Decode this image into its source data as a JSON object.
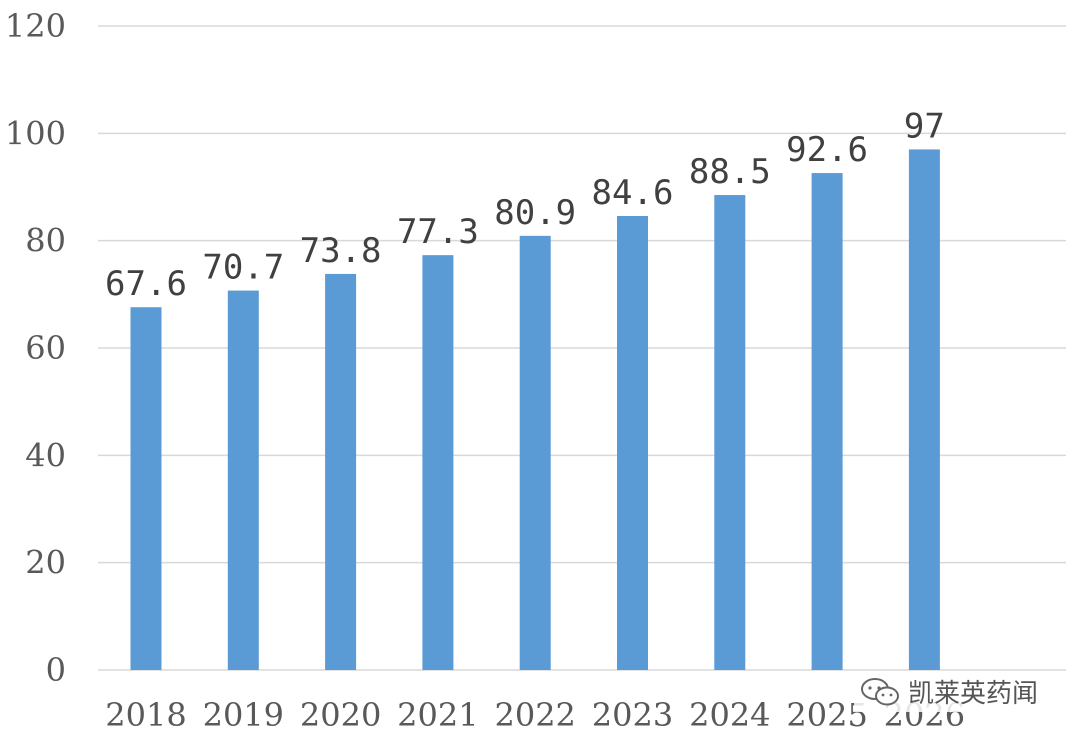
{
  "chart_data": {
    "type": "bar",
    "categories": [
      "2018",
      "2019",
      "2020",
      "2021",
      "2022",
      "2023",
      "2024",
      "2025",
      "2026"
    ],
    "values": [
      67.6,
      70.7,
      73.8,
      77.3,
      80.9,
      84.6,
      88.5,
      92.6,
      97
    ],
    "data_labels": [
      "67.6",
      "70.7",
      "73.8",
      "77.3",
      "80.9",
      "84.6",
      "88.5",
      "92.6",
      "97"
    ],
    "ylim": [
      0,
      120
    ],
    "yticks": [
      0,
      20,
      40,
      60,
      80,
      100,
      120
    ],
    "grid": true,
    "title": "",
    "xlabel": "",
    "ylabel": "",
    "bar_color": "#5b9bd5"
  },
  "watermark": {
    "icon": "wechat-icon",
    "text": "凯莱英药闻"
  }
}
